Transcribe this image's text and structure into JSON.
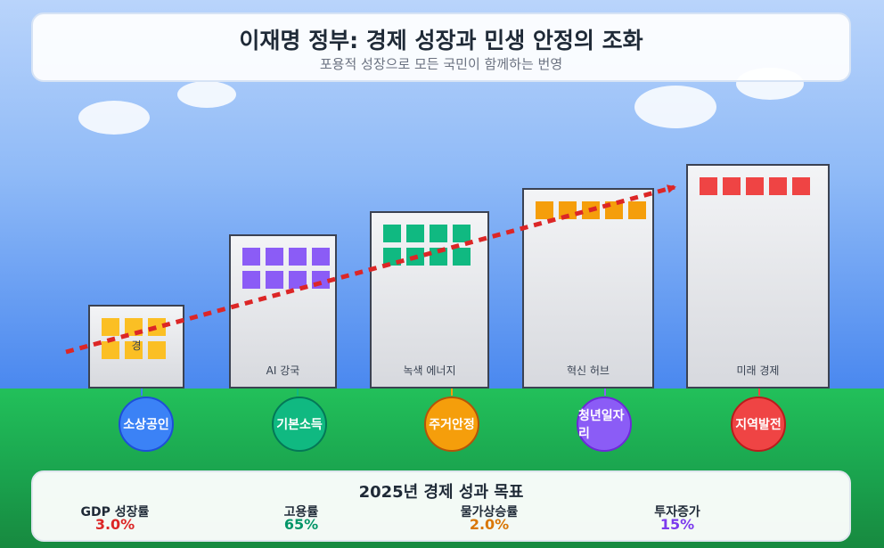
{
  "header": {
    "title": "이재명 정부: 경제 성장과 민생 안정의 조화",
    "subtitle": "포용적 성장으로 모든 국민이 함께하는 번영"
  },
  "buildings": [
    {
      "label": "경",
      "window_color": "#fbbf24"
    },
    {
      "label": "AI 강국",
      "window_color": "#8b5cf6"
    },
    {
      "label": "녹색 에너지",
      "window_color": "#10b981"
    },
    {
      "label": "혁신 허브",
      "window_color": "#f59e0b"
    },
    {
      "label": "미래 경제",
      "window_color": "#ef4444"
    }
  ],
  "pillars": [
    {
      "label": "소상공인",
      "color": "#3b82f6",
      "border": "#1d4ed8"
    },
    {
      "label": "기본소득",
      "color": "#10b981",
      "border": "#047857"
    },
    {
      "label": "주거안정",
      "color": "#f59e0b",
      "border": "#b45309"
    },
    {
      "label": "청년일자리",
      "color": "#8b5cf6",
      "border": "#6d28d9"
    },
    {
      "label": "지역발전",
      "color": "#ef4444",
      "border": "#b91c1c"
    }
  ],
  "trend": {
    "color": "#dc2626"
  },
  "goals": {
    "title": "2025년 경제 성과 목표",
    "items": [
      {
        "label": "GDP 성장률",
        "value": "3.0%",
        "color": "#dc2626"
      },
      {
        "label": "고용률",
        "value": "65%",
        "color": "#059669"
      },
      {
        "label": "물가상승률",
        "value": "2.0%",
        "color": "#d97706"
      },
      {
        "label": "투자증가",
        "value": "15%",
        "color": "#7c3aed"
      }
    ]
  }
}
